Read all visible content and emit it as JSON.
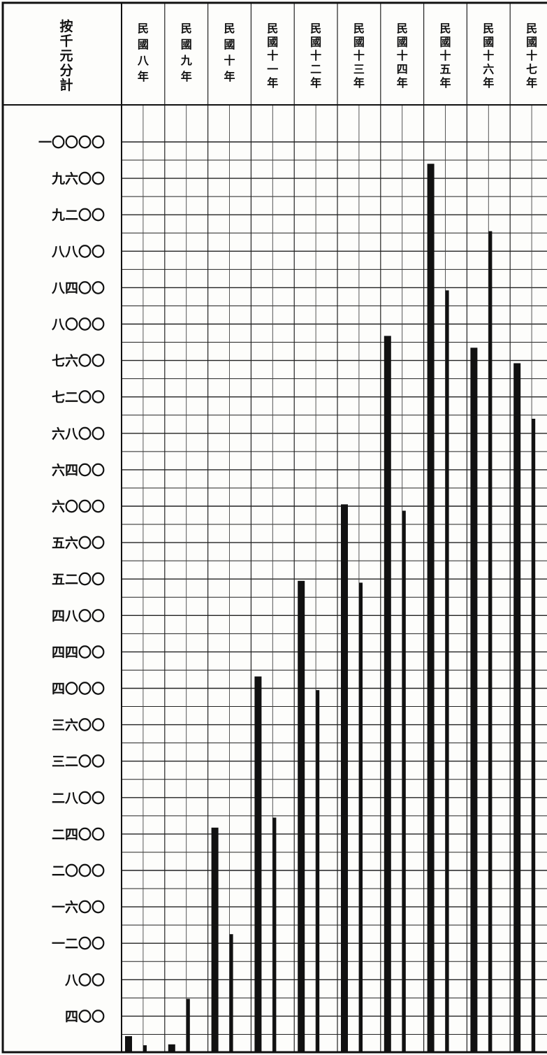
{
  "chart_data": {
    "type": "bar",
    "corner_label": "按千元分計",
    "categories": [
      "民國八年",
      "民國九年",
      "民國十年",
      "民國十一年",
      "民國十二年",
      "民國十三年",
      "民國十四年",
      "民國十五年",
      "民國十六年",
      "民國十七年"
    ],
    "y_tick_labels": [
      "一〇〇〇〇",
      "九六〇〇",
      "九二〇〇",
      "八八〇〇",
      "八四〇〇",
      "八〇〇〇",
      "七六〇〇",
      "七二〇〇",
      "六八〇〇",
      "六四〇〇",
      "六〇〇〇",
      "五六〇〇",
      "五二〇〇",
      "四八〇〇",
      "四四〇〇",
      "四〇〇〇",
      "三六〇〇",
      "三二〇〇",
      "二八〇〇",
      "二四〇〇",
      "二〇〇〇",
      "一六〇〇",
      "一二〇〇",
      "八〇〇",
      "四〇〇"
    ],
    "y_tick_values": [
      10000,
      9600,
      9200,
      8800,
      8400,
      8000,
      7600,
      7200,
      6800,
      6400,
      6000,
      5600,
      5200,
      4800,
      4400,
      4000,
      3600,
      3200,
      2800,
      2400,
      2000,
      1600,
      1200,
      800,
      400
    ],
    "ylim": [
      0,
      10000
    ],
    "grid": true,
    "series": [
      {
        "values": [
          180,
          90,
          2470,
          4130,
          5180,
          6020,
          7870,
          9760,
          7740,
          7570
        ]
      },
      {
        "values": [
          80,
          590,
          1300,
          2580,
          3980,
          5160,
          5950,
          8370,
          9020,
          6960
        ]
      }
    ]
  }
}
